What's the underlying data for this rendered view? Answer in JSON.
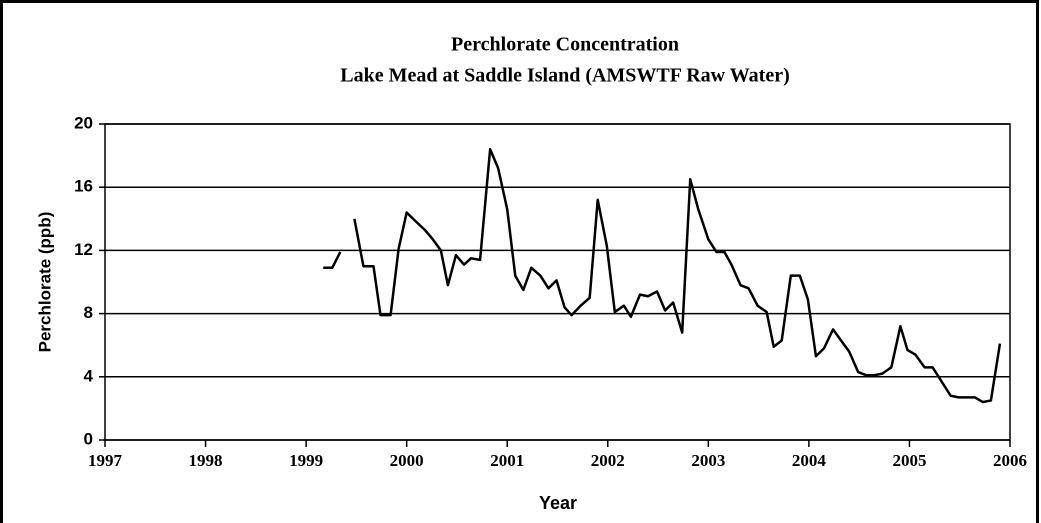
{
  "chart_data": {
    "type": "line",
    "title": "Perchlorate Concentration",
    "subtitle": "Lake Mead at Saddle Island (AMSWTF Raw Water)",
    "xlabel": "Year",
    "ylabel": "Perchlorate  (ppb)",
    "xlim": [
      1997,
      2006
    ],
    "xticks": [
      1997,
      1998,
      1999,
      2000,
      2001,
      2002,
      2003,
      2004,
      2005,
      2006
    ],
    "ylim": [
      0,
      20
    ],
    "yticks": [
      0,
      4,
      8,
      12,
      16,
      20
    ],
    "grid": true,
    "series": [
      {
        "name": "Perchlorate",
        "color": "#000000",
        "x": [
          1999.17,
          1999.26,
          1999.34,
          1999.41,
          1999.48,
          1999.57,
          1999.67,
          1999.74,
          1999.84,
          1999.92,
          2000.0,
          2000.08,
          2000.18,
          2000.26,
          2000.34,
          2000.41,
          2000.49,
          2000.57,
          2000.64,
          2000.73,
          2000.83,
          2000.91,
          2001.0,
          2001.08,
          2001.16,
          2001.24,
          2001.33,
          2001.41,
          2001.49,
          2001.57,
          2001.64,
          2001.73,
          2001.82,
          2001.9,
          2001.99,
          2002.07,
          2002.16,
          2002.23,
          2002.32,
          2002.4,
          2002.49,
          2002.57,
          2002.65,
          2002.74,
          2002.82,
          2002.9,
          2003.0,
          2003.08,
          2003.16,
          2003.23,
          2003.32,
          2003.4,
          2003.49,
          2003.58,
          2003.65,
          2003.73,
          2003.82,
          2003.91,
          2003.99,
          2004.07,
          2004.15,
          2004.24,
          2004.32,
          2004.4,
          2004.49,
          2004.57,
          2004.65,
          2004.73,
          2004.82,
          2004.91,
          2004.98,
          2005.06,
          2005.15,
          2005.23,
          2005.32,
          2005.41,
          2005.49,
          2005.57,
          2005.65,
          2005.73,
          2005.81,
          2005.9
        ],
        "values": [
          10.9,
          10.9,
          11.9,
          null,
          14.0,
          11.0,
          11.0,
          7.9,
          7.9,
          12.1,
          14.4,
          13.9,
          13.3,
          12.7,
          12.0,
          9.8,
          11.7,
          11.1,
          11.5,
          11.4,
          18.4,
          17.2,
          14.6,
          10.4,
          9.5,
          10.9,
          10.4,
          9.6,
          10.1,
          8.4,
          7.9,
          8.5,
          9.0,
          15.2,
          12.3,
          8.1,
          8.5,
          7.8,
          9.2,
          9.1,
          9.4,
          8.2,
          8.7,
          6.8,
          16.5,
          14.6,
          12.7,
          11.9,
          11.9,
          11.1,
          9.8,
          9.6,
          8.5,
          8.1,
          5.9,
          6.3,
          10.4,
          10.4,
          8.9,
          5.3,
          5.8,
          7.0,
          6.3,
          5.6,
          4.3,
          4.1,
          4.1,
          4.2,
          4.6,
          7.2,
          5.7,
          5.4,
          4.6,
          4.6,
          3.7,
          2.8,
          2.7,
          2.7,
          2.7,
          2.4,
          2.5,
          6.1
        ]
      }
    ]
  }
}
